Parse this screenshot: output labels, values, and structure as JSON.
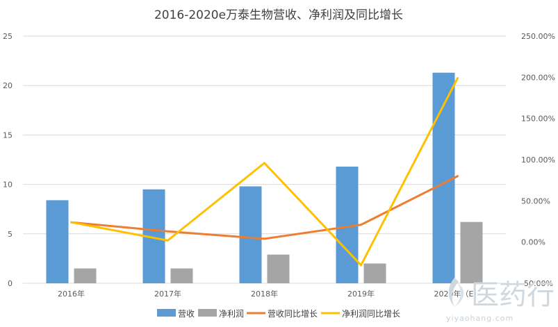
{
  "chart_data": {
    "type": "bar",
    "title": "2016-2020e万泰生物营收、净利润及同比增长",
    "categories": [
      "2016年",
      "2017年",
      "2018年",
      "2019年",
      "2020年（E）"
    ],
    "series": [
      {
        "name": "营收",
        "kind": "bar",
        "axis": "left",
        "color": "#5b9bd5",
        "values": [
          8.4,
          9.5,
          9.8,
          11.8,
          21.3
        ]
      },
      {
        "name": "净利润",
        "kind": "bar",
        "axis": "left",
        "color": "#a5a5a5",
        "values": [
          1.5,
          1.5,
          2.9,
          2.0,
          6.2
        ]
      },
      {
        "name": "营收同比增长",
        "kind": "line",
        "axis": "right",
        "color": "#ed7d31",
        "values": [
          24.0,
          13.0,
          4.0,
          21.0,
          80.0
        ]
      },
      {
        "name": "净利润同比增长",
        "kind": "line",
        "axis": "right",
        "color": "#ffc000",
        "values": [
          24.0,
          2.0,
          96.0,
          -28.0,
          199.0
        ]
      }
    ],
    "y_left": {
      "min": 0,
      "max": 25,
      "ticks": [
        "0",
        "5",
        "10",
        "15",
        "20",
        "25"
      ]
    },
    "y_right": {
      "min": -50,
      "max": 250,
      "ticks": [
        "-50.00%",
        "0.00%",
        "50.00%",
        "100.00%",
        "150.00%",
        "200.00%",
        "250.00%"
      ]
    },
    "grid": true,
    "legend_position": "bottom"
  },
  "watermark": {
    "text": "医药行",
    "url": "yiyaohang.com"
  }
}
